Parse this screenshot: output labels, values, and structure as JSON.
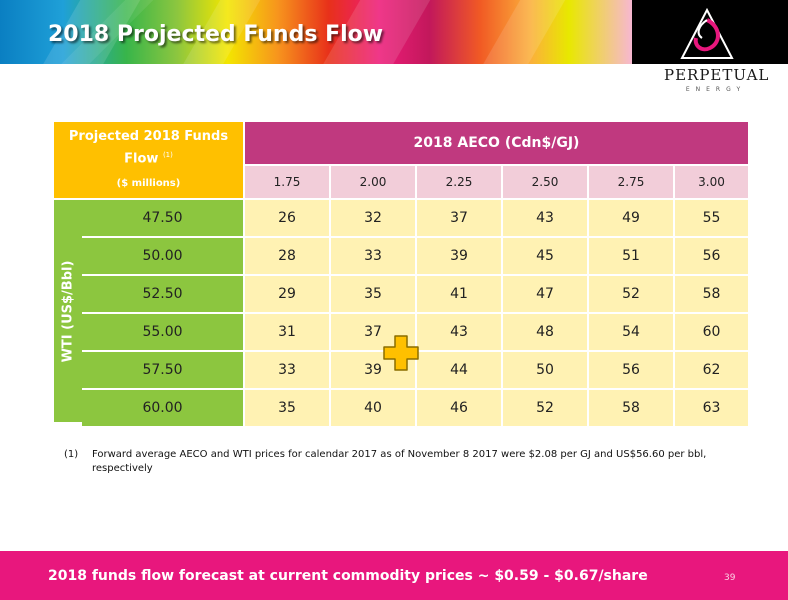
{
  "header": {
    "title": "2018 Projected Funds Flow"
  },
  "logo": {
    "name": "PERPETUAL",
    "sub": "ENERGY"
  },
  "table": {
    "corner_title": "Projected 2018 Funds Flow",
    "corner_note": "(1)",
    "corner_unit": "($ millions)",
    "aeco_header": "2018 AECO (Cdn$/GJ)",
    "side_label": "WTI (US$/Bbl)",
    "aeco_prices": [
      "1.75",
      "2.00",
      "2.25",
      "2.50",
      "2.75",
      "3.00"
    ],
    "rows": [
      {
        "wti": "47.50",
        "values": [
          "26",
          "32",
          "37",
          "43",
          "49",
          "55"
        ]
      },
      {
        "wti": "50.00",
        "values": [
          "28",
          "33",
          "39",
          "45",
          "51",
          "56"
        ]
      },
      {
        "wti": "52.50",
        "values": [
          "29",
          "35",
          "41",
          "47",
          "52",
          "58"
        ]
      },
      {
        "wti": "55.00",
        "values": [
          "31",
          "37",
          "43",
          "48",
          "54",
          "60"
        ]
      },
      {
        "wti": "57.50",
        "values": [
          "33",
          "39",
          "44",
          "50",
          "56",
          "62"
        ]
      },
      {
        "wti": "60.00",
        "values": [
          "35",
          "40",
          "46",
          "52",
          "58",
          "63"
        ]
      }
    ]
  },
  "footnote": {
    "number": "(1)",
    "text": "Forward average AECO and WTI prices for calendar 2017 as of November 8 2017 were $2.08 per GJ and US$56.60 per bbl, respectively"
  },
  "footer": {
    "text": "2018 funds flow forecast at current commodity prices ~ $0.59 - $0.67/share",
    "page_number": "39"
  },
  "colors": {
    "corner": "#ffc000",
    "aeco_header": "#c0397f",
    "price_header": "#f2cdd9",
    "wti_column": "#8cc63f",
    "cells": "#fff2b3",
    "footer": "#e8177d"
  },
  "icons": {
    "marker": "plus-marker-icon",
    "logo": "perpetual-logo-icon"
  }
}
